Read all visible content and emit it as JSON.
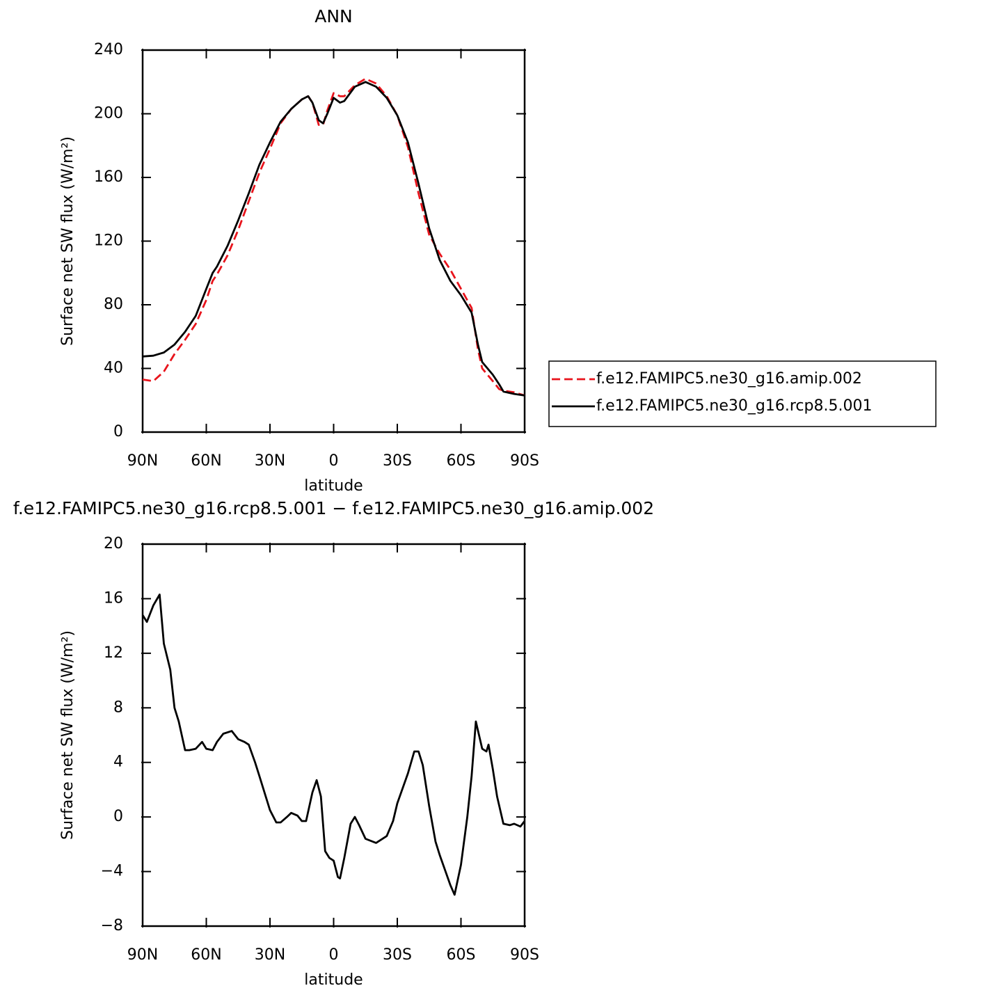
{
  "chart_data": [
    {
      "type": "line",
      "title": "ANN",
      "xlabel": "latitude",
      "ylabel": "Surface net SW flux (W/m²)",
      "xlim": [
        90,
        -90
      ],
      "xticks": [
        {
          "value": 90,
          "label": "90N"
        },
        {
          "value": 60,
          "label": "60N"
        },
        {
          "value": 30,
          "label": "30N"
        },
        0,
        {
          "value": -30,
          "label": "30S"
        },
        {
          "value": -60,
          "label": "60S"
        },
        {
          "value": -90,
          "label": "90S"
        }
      ],
      "ylim": [
        0,
        240
      ],
      "yticks": [
        0,
        40,
        80,
        120,
        160,
        200,
        240
      ],
      "legend": "right",
      "x": [
        90,
        85,
        80,
        75,
        70,
        65,
        60,
        57,
        55,
        50,
        45,
        40,
        35,
        30,
        25,
        20,
        15,
        12,
        10,
        7,
        5,
        3,
        0,
        -3,
        -5,
        -10,
        -15,
        -20,
        -25,
        -30,
        -35,
        -40,
        -45,
        -50,
        -55,
        -60,
        -65,
        -68,
        -70,
        -75,
        -78,
        -80,
        -85,
        -90
      ],
      "series": [
        {
          "name": "f.e12.FAMIPC5.ne30_g16.amip.002",
          "color": "#e8141c",
          "dashed": true,
          "values": [
            33,
            32,
            38,
            49,
            58,
            68,
            83,
            95,
            99,
            111,
            127,
            145,
            163,
            178,
            194,
            203,
            209,
            211,
            207,
            193,
            193,
            202,
            213,
            211,
            211,
            218,
            222,
            219,
            211,
            199,
            179,
            150,
            124,
            112,
            102,
            90,
            78,
            52,
            40,
            32,
            27,
            26,
            25,
            23
          ]
        },
        {
          "name": "f.e12.FAMIPC5.ne30_g16.rcp8.5.001",
          "color": "#000000",
          "dashed": false,
          "values": [
            47.5,
            48,
            50,
            55,
            63,
            73,
            90,
            100,
            104,
            117,
            133,
            150,
            168,
            182,
            195,
            203,
            209,
            211,
            207,
            196,
            194,
            200,
            210,
            207,
            208,
            217,
            220,
            217,
            210,
            199,
            182,
            156,
            128,
            108,
            95,
            86,
            75,
            55,
            44,
            36,
            30,
            25.5,
            24,
            23
          ]
        }
      ]
    },
    {
      "type": "line",
      "title": "f.e12.FAMIPC5.ne30_g16.rcp8.5.001 − f.e12.FAMIPC5.ne30_g16.amip.002",
      "xlabel": "latitude",
      "ylabel": "Surface net SW flux (W/m²)",
      "xlim": [
        90,
        -90
      ],
      "xticks": [
        {
          "value": 90,
          "label": "90N"
        },
        {
          "value": 60,
          "label": "60N"
        },
        {
          "value": 30,
          "label": "30N"
        },
        0,
        {
          "value": -30,
          "label": "30S"
        },
        {
          "value": -60,
          "label": "60S"
        },
        {
          "value": -90,
          "label": "90S"
        }
      ],
      "ylim": [
        -8,
        20
      ],
      "yticks": [
        {
          "value": -8,
          "label": "−8"
        },
        {
          "value": -4,
          "label": "−4"
        },
        0,
        4,
        8,
        12,
        16,
        20
      ],
      "x": [
        90,
        88,
        85,
        82,
        80,
        77,
        75,
        73,
        70,
        68,
        65,
        62,
        60,
        57,
        55,
        52,
        48,
        45,
        42,
        40,
        37,
        35,
        32,
        30,
        27,
        25,
        22,
        20,
        17,
        15,
        13,
        10,
        8,
        6,
        4,
        2,
        0,
        -2,
        -3,
        -5,
        -8,
        -10,
        -12,
        -15,
        -20,
        -25,
        -28,
        -30,
        -35,
        -38,
        -40,
        -42,
        -45,
        -48,
        -50,
        -55,
        -57,
        -60,
        -63,
        -65,
        -67,
        -70,
        -72,
        -73,
        -75,
        -77,
        -80,
        -83,
        -85,
        -88,
        -90
      ],
      "series": [
        {
          "color": "#000000",
          "dashed": false,
          "values": [
            14.8,
            14.3,
            15.5,
            16.3,
            12.7,
            10.8,
            8,
            7,
            4.9,
            4.9,
            5,
            5.5,
            5,
            4.9,
            5.5,
            6.1,
            6.3,
            5.7,
            5.5,
            5.3,
            4,
            3,
            1.5,
            0.5,
            -0.4,
            -0.4,
            0,
            0.3,
            0.1,
            -0.3,
            -0.3,
            1.8,
            2.7,
            1.5,
            -2.5,
            -3,
            -3.2,
            -4.4,
            -4.5,
            -3,
            -0.5,
            0,
            -0.6,
            -1.6,
            -1.9,
            -1.4,
            -0.3,
            1,
            3.2,
            4.8,
            4.8,
            3.8,
            0.8,
            -1.8,
            -2.8,
            -5,
            -5.7,
            -3.5,
            0,
            3,
            7,
            5,
            4.8,
            5.3,
            3.5,
            1.5,
            -0.5,
            -0.6,
            -0.5,
            -0.7,
            -0.3
          ]
        }
      ]
    }
  ]
}
